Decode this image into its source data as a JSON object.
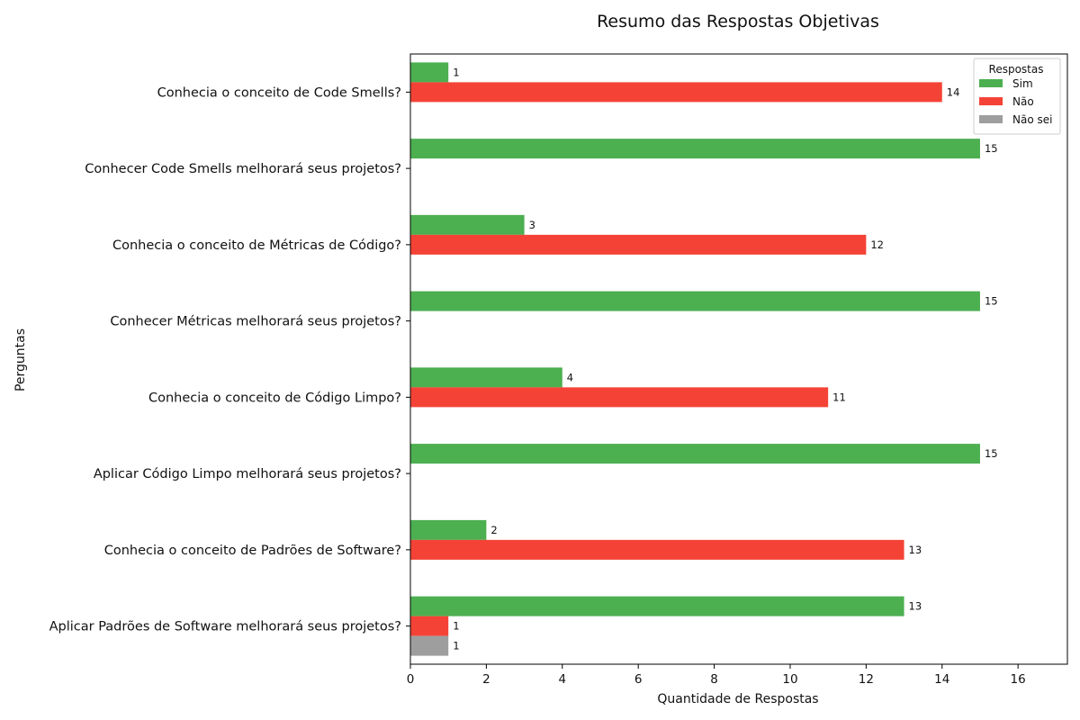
{
  "chart_data": {
    "type": "bar",
    "orientation": "horizontal",
    "title": "Resumo das Respostas Objetivas",
    "xlabel": "Quantidade de Respostas",
    "ylabel": "Perguntas",
    "xlim": [
      0,
      17.3
    ],
    "xticks": [
      "0",
      "2",
      "4",
      "6",
      "8",
      "10",
      "12",
      "14",
      "16"
    ],
    "grid": false,
    "legend": {
      "title": "Respostas",
      "placement": "top-right"
    },
    "categories": [
      "Conhecia o conceito de Code Smells?",
      "Conhecer Code Smells melhorará seus projetos?",
      "Conhecia o conceito de Métricas de Código?",
      "Conhecer Métricas melhorará seus projetos?",
      "Conhecia o conceito de Código Limpo?",
      "Aplicar Código Limpo melhorará seus projetos?",
      "Conhecia o conceito de Padrões de Software?",
      "Aplicar Padrões de Software melhorará seus projetos?"
    ],
    "series": [
      {
        "name": "Sim",
        "color": "#4caf50",
        "values": [
          1,
          15,
          3,
          15,
          4,
          15,
          2,
          13
        ]
      },
      {
        "name": "Não",
        "color": "#f44336",
        "values": [
          14,
          0,
          12,
          0,
          11,
          0,
          13,
          1
        ]
      },
      {
        "name": "Não sei",
        "color": "#9e9e9e",
        "values": [
          0,
          0,
          0,
          0,
          0,
          0,
          0,
          1
        ]
      }
    ]
  }
}
